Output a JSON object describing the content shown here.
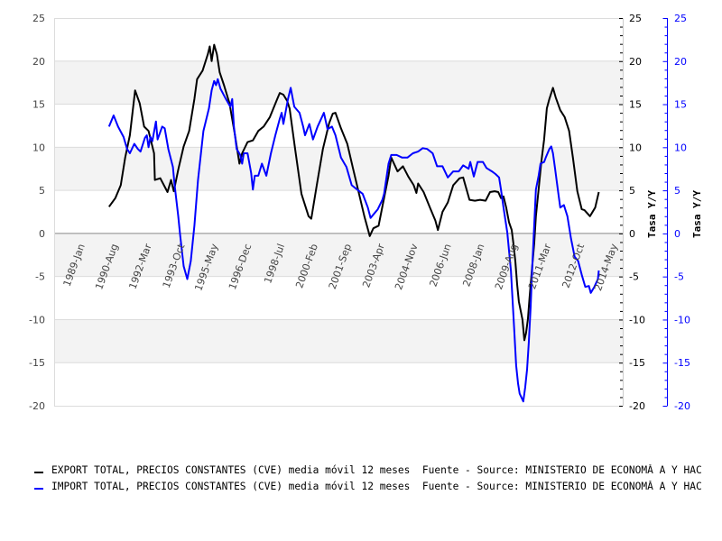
{
  "chart_data": {
    "type": "line",
    "title": "",
    "xlabel": "",
    "ylabel_left": "",
    "ylabel_right": "Tasa Y/Y",
    "ylabel_right2": "Tasa Y/Y",
    "ylim": [
      -20,
      25
    ],
    "yticks": [
      25,
      20,
      15,
      10,
      5,
      0,
      -5,
      -10,
      -15,
      -20
    ],
    "xticks": [
      {
        "label": "1989-Jan",
        "x": 1989.0
      },
      {
        "label": "1990-Aug",
        "x": 1990.58
      },
      {
        "label": "1992-Mar",
        "x": 1992.17
      },
      {
        "label": "1993-Oct",
        "x": 1993.75
      },
      {
        "label": "1995-May",
        "x": 1995.33
      },
      {
        "label": "1996-Dec",
        "x": 1996.92
      },
      {
        "label": "1998-Jul",
        "x": 1998.5
      },
      {
        "label": "2000-Feb",
        "x": 2000.08
      },
      {
        "label": "2001-Sep",
        "x": 2001.67
      },
      {
        "label": "2003-Apr",
        "x": 2003.25
      },
      {
        "label": "2004-Nov",
        "x": 2004.83
      },
      {
        "label": "2006-Jun",
        "x": 2006.42
      },
      {
        "label": "2008-Jan",
        "x": 2008.0
      },
      {
        "label": "2009-Aug",
        "x": 2009.58
      },
      {
        "label": "2011-Mar",
        "x": 2011.17
      },
      {
        "label": "2012-Oct",
        "x": 2012.75
      },
      {
        "label": "2014-May",
        "x": 2014.33
      }
    ],
    "xlim": [
      1987.5,
      2014.6
    ],
    "grid": true,
    "legend_position": "bottom",
    "series": [
      {
        "name": "EXPORT TOTAL, PRECIOS CONSTANTES (CVE) media móvil 12 meses",
        "source": "Fuente - Source: MINISTERIO DE ECONOMĂ A Y HAC",
        "color": "#000000",
        "axis": "right",
        "points": [
          [
            1990.15,
            3.1
          ],
          [
            1990.45,
            4.1
          ],
          [
            1990.71,
            5.6
          ],
          [
            1990.92,
            8.8
          ],
          [
            1991.14,
            11.4
          ],
          [
            1991.39,
            16.6
          ],
          [
            1991.61,
            15.1
          ],
          [
            1991.82,
            12.4
          ],
          [
            1992.03,
            11.9
          ],
          [
            1992.29,
            9.3
          ],
          [
            1992.33,
            6.2
          ],
          [
            1992.59,
            6.4
          ],
          [
            1992.93,
            4.8
          ],
          [
            1993.1,
            6.2
          ],
          [
            1993.23,
            4.9
          ],
          [
            1993.44,
            7.4
          ],
          [
            1993.7,
            10.1
          ],
          [
            1993.96,
            11.9
          ],
          [
            1994.21,
            15.6
          ],
          [
            1994.34,
            17.9
          ],
          [
            1994.6,
            18.9
          ],
          [
            1994.85,
            20.8
          ],
          [
            1994.94,
            21.7
          ],
          [
            1995.03,
            20.0
          ],
          [
            1995.15,
            21.9
          ],
          [
            1995.28,
            20.8
          ],
          [
            1995.41,
            18.7
          ],
          [
            1995.62,
            17.2
          ],
          [
            1995.88,
            15.1
          ],
          [
            1996.14,
            11.4
          ],
          [
            1996.35,
            8.1
          ],
          [
            1996.48,
            9.3
          ],
          [
            1996.74,
            10.6
          ],
          [
            1996.99,
            10.8
          ],
          [
            1997.25,
            11.9
          ],
          [
            1997.5,
            12.4
          ],
          [
            1997.8,
            13.5
          ],
          [
            1998.15,
            15.6
          ],
          [
            1998.27,
            16.3
          ],
          [
            1998.44,
            16.1
          ],
          [
            1998.62,
            15.4
          ],
          [
            1998.74,
            14.5
          ],
          [
            1999.0,
            9.8
          ],
          [
            1999.3,
            4.6
          ],
          [
            1999.64,
            2.0
          ],
          [
            1999.77,
            1.7
          ],
          [
            2000.03,
            5.6
          ],
          [
            2000.32,
            9.8
          ],
          [
            2000.62,
            12.8
          ],
          [
            2000.79,
            13.9
          ],
          [
            2000.92,
            14.0
          ],
          [
            2001.18,
            12.2
          ],
          [
            2001.48,
            10.4
          ],
          [
            2001.74,
            7.7
          ],
          [
            2001.99,
            5.1
          ],
          [
            2002.29,
            2.0
          ],
          [
            2002.55,
            -0.3
          ],
          [
            2002.72,
            0.6
          ],
          [
            2002.97,
            0.9
          ],
          [
            2003.19,
            3.6
          ],
          [
            2003.44,
            6.7
          ],
          [
            2003.57,
            8.8
          ],
          [
            2003.87,
            7.2
          ],
          [
            2004.13,
            7.8
          ],
          [
            2004.38,
            6.6
          ],
          [
            2004.64,
            5.6
          ],
          [
            2004.77,
            4.7
          ],
          [
            2004.85,
            5.8
          ],
          [
            2005.11,
            4.8
          ],
          [
            2005.41,
            3.0
          ],
          [
            2005.67,
            1.5
          ],
          [
            2005.79,
            0.4
          ],
          [
            2006.01,
            2.5
          ],
          [
            2006.26,
            3.6
          ],
          [
            2006.52,
            5.6
          ],
          [
            2006.82,
            6.4
          ],
          [
            2006.99,
            6.5
          ],
          [
            2007.29,
            3.9
          ],
          [
            2007.55,
            3.8
          ],
          [
            2007.8,
            3.9
          ],
          [
            2008.06,
            3.8
          ],
          [
            2008.27,
            4.8
          ],
          [
            2008.49,
            4.9
          ],
          [
            2008.66,
            4.8
          ],
          [
            2008.79,
            4.1
          ],
          [
            2008.91,
            4.3
          ],
          [
            2009.04,
            3.0
          ],
          [
            2009.17,
            1.3
          ],
          [
            2009.3,
            0.4
          ],
          [
            2009.38,
            -1.2
          ],
          [
            2009.47,
            -3.2
          ],
          [
            2009.56,
            -5.9
          ],
          [
            2009.64,
            -7.9
          ],
          [
            2009.81,
            -10.0
          ],
          [
            2009.9,
            -12.4
          ],
          [
            2009.98,
            -11.6
          ],
          [
            2010.07,
            -10.0
          ],
          [
            2010.15,
            -7.4
          ],
          [
            2010.24,
            -4.8
          ],
          [
            2010.37,
            -1.2
          ],
          [
            2010.45,
            2.0
          ],
          [
            2010.58,
            5.1
          ],
          [
            2010.71,
            8.3
          ],
          [
            2010.84,
            10.9
          ],
          [
            2010.97,
            14.5
          ],
          [
            2011.09,
            15.6
          ],
          [
            2011.26,
            16.9
          ],
          [
            2011.39,
            15.8
          ],
          [
            2011.61,
            14.3
          ],
          [
            2011.82,
            13.5
          ],
          [
            2012.03,
            11.9
          ],
          [
            2012.21,
            8.8
          ],
          [
            2012.42,
            4.9
          ],
          [
            2012.63,
            2.8
          ],
          [
            2012.76,
            2.7
          ],
          [
            2013.02,
            2.0
          ],
          [
            2013.27,
            3.0
          ],
          [
            2013.44,
            4.8
          ]
        ]
      },
      {
        "name": "IMPORT TOTAL, PRECIOS CONSTANTES (CVE) media móvil 12 meses",
        "source": "Fuente - Source: MINISTERIO DE ECONOMĂ A Y HAC",
        "color": "#0000ff",
        "axis": "right2",
        "points": [
          [
            1990.15,
            12.4
          ],
          [
            1990.37,
            13.7
          ],
          [
            1990.58,
            12.4
          ],
          [
            1990.84,
            11.2
          ],
          [
            1991.01,
            9.8
          ],
          [
            1991.14,
            9.3
          ],
          [
            1991.35,
            10.4
          ],
          [
            1991.52,
            9.8
          ],
          [
            1991.65,
            9.5
          ],
          [
            1991.86,
            11.1
          ],
          [
            1991.95,
            11.4
          ],
          [
            1992.03,
            10.0
          ],
          [
            1992.12,
            11.2
          ],
          [
            1992.21,
            10.7
          ],
          [
            1992.38,
            13.0
          ],
          [
            1992.46,
            10.9
          ],
          [
            1992.68,
            12.4
          ],
          [
            1992.8,
            12.2
          ],
          [
            1992.97,
            9.8
          ],
          [
            1993.19,
            7.7
          ],
          [
            1993.27,
            5.6
          ],
          [
            1993.44,
            2.0
          ],
          [
            1993.53,
            -0.1
          ],
          [
            1993.7,
            -3.8
          ],
          [
            1993.87,
            -5.3
          ],
          [
            1994.04,
            -3.2
          ],
          [
            1994.21,
            0.9
          ],
          [
            1994.38,
            6.2
          ],
          [
            1994.64,
            11.9
          ],
          [
            1994.9,
            14.5
          ],
          [
            1995.03,
            16.6
          ],
          [
            1995.15,
            17.7
          ],
          [
            1995.24,
            17.2
          ],
          [
            1995.32,
            17.9
          ],
          [
            1995.45,
            16.8
          ],
          [
            1995.71,
            15.6
          ],
          [
            1995.92,
            14.7
          ],
          [
            1996.01,
            15.6
          ],
          [
            1996.09,
            12.4
          ],
          [
            1996.22,
            9.8
          ],
          [
            1996.39,
            9.1
          ],
          [
            1996.48,
            8.1
          ],
          [
            1996.56,
            9.3
          ],
          [
            1996.74,
            9.3
          ],
          [
            1996.91,
            7.0
          ],
          [
            1996.99,
            5.1
          ],
          [
            1997.08,
            6.7
          ],
          [
            1997.25,
            6.7
          ],
          [
            1997.42,
            8.1
          ],
          [
            1997.63,
            6.7
          ],
          [
            1997.85,
            9.3
          ],
          [
            1998.06,
            11.4
          ],
          [
            1998.27,
            13.3
          ],
          [
            1998.36,
            14.0
          ],
          [
            1998.44,
            12.7
          ],
          [
            1998.66,
            15.6
          ],
          [
            1998.79,
            16.9
          ],
          [
            1998.96,
            14.7
          ],
          [
            1999.21,
            14.0
          ],
          [
            1999.38,
            12.4
          ],
          [
            1999.47,
            11.4
          ],
          [
            1999.68,
            12.7
          ],
          [
            1999.85,
            10.9
          ],
          [
            2000.07,
            12.4
          ],
          [
            2000.37,
            14.0
          ],
          [
            2000.54,
            12.1
          ],
          [
            2000.75,
            12.4
          ],
          [
            2000.92,
            11.4
          ],
          [
            2001.18,
            8.8
          ],
          [
            2001.44,
            7.7
          ],
          [
            2001.69,
            5.6
          ],
          [
            2001.95,
            5.1
          ],
          [
            2002.21,
            4.6
          ],
          [
            2002.46,
            3.0
          ],
          [
            2002.59,
            1.8
          ],
          [
            2002.93,
            2.8
          ],
          [
            2003.15,
            3.9
          ],
          [
            2003.23,
            4.6
          ],
          [
            2003.44,
            8.1
          ],
          [
            2003.57,
            9.1
          ],
          [
            2003.83,
            9.1
          ],
          [
            2004.09,
            8.8
          ],
          [
            2004.34,
            8.8
          ],
          [
            2004.6,
            9.3
          ],
          [
            2004.85,
            9.5
          ],
          [
            2005.07,
            9.9
          ],
          [
            2005.28,
            9.8
          ],
          [
            2005.54,
            9.3
          ],
          [
            2005.75,
            7.8
          ],
          [
            2006.01,
            7.8
          ],
          [
            2006.26,
            6.5
          ],
          [
            2006.52,
            7.2
          ],
          [
            2006.78,
            7.2
          ],
          [
            2006.99,
            7.9
          ],
          [
            2007.25,
            7.5
          ],
          [
            2007.33,
            8.3
          ],
          [
            2007.5,
            6.6
          ],
          [
            2007.68,
            8.3
          ],
          [
            2007.93,
            8.3
          ],
          [
            2008.1,
            7.6
          ],
          [
            2008.36,
            7.2
          ],
          [
            2008.53,
            6.9
          ],
          [
            2008.7,
            6.5
          ],
          [
            2008.79,
            5.1
          ],
          [
            2008.91,
            3.0
          ],
          [
            2009.09,
            0.1
          ],
          [
            2009.26,
            -4.3
          ],
          [
            2009.43,
            -11.6
          ],
          [
            2009.51,
            -15.3
          ],
          [
            2009.6,
            -17.4
          ],
          [
            2009.68,
            -18.6
          ],
          [
            2009.85,
            -19.5
          ],
          [
            2009.94,
            -17.9
          ],
          [
            2010.03,
            -15.8
          ],
          [
            2010.11,
            -12.7
          ],
          [
            2010.2,
            -8.5
          ],
          [
            2010.28,
            -3.8
          ],
          [
            2010.37,
            0.9
          ],
          [
            2010.45,
            5.1
          ],
          [
            2010.58,
            6.7
          ],
          [
            2010.67,
            8.1
          ],
          [
            2010.84,
            8.3
          ],
          [
            2010.92,
            8.8
          ],
          [
            2011.09,
            9.8
          ],
          [
            2011.18,
            10.1
          ],
          [
            2011.26,
            9.3
          ],
          [
            2011.35,
            7.7
          ],
          [
            2011.52,
            4.6
          ],
          [
            2011.61,
            3.0
          ],
          [
            2011.78,
            3.3
          ],
          [
            2011.95,
            2.0
          ],
          [
            2012.12,
            -0.6
          ],
          [
            2012.29,
            -2.7
          ],
          [
            2012.46,
            -3.2
          ],
          [
            2012.63,
            -4.8
          ],
          [
            2012.8,
            -6.2
          ],
          [
            2012.97,
            -6.1
          ],
          [
            2013.06,
            -6.9
          ],
          [
            2013.23,
            -6.2
          ],
          [
            2013.4,
            -5.3
          ],
          [
            2013.44,
            -4.3
          ]
        ]
      }
    ]
  }
}
